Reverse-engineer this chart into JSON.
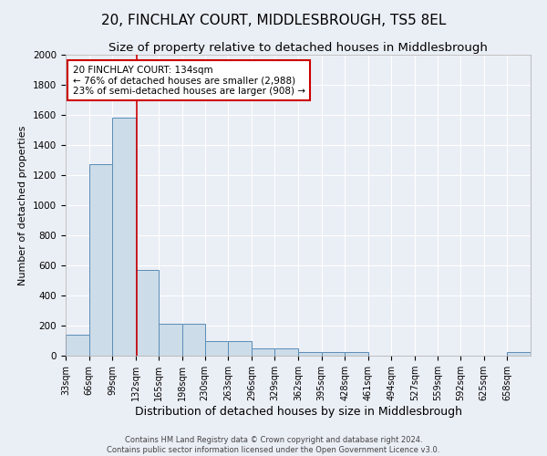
{
  "title1": "20, FINCHLAY COURT, MIDDLESBROUGH, TS5 8EL",
  "title2": "Size of property relative to detached houses in Middlesbrough",
  "xlabel": "Distribution of detached houses by size in Middlesbrough",
  "ylabel": "Number of detached properties",
  "footnote1": "Contains HM Land Registry data © Crown copyright and database right 2024.",
  "footnote2": "Contains public sector information licensed under the Open Government Licence v3.0.",
  "annotation_line1": "20 FINCHLAY COURT: 134sqm",
  "annotation_line2": "← 76% of detached houses are smaller (2,988)",
  "annotation_line3": "23% of semi-detached houses are larger (908) →",
  "bar_edges": [
    33,
    66,
    99,
    132,
    165,
    198,
    230,
    263,
    296,
    329,
    362,
    395,
    428,
    461,
    494,
    527,
    559,
    592,
    625,
    658,
    691
  ],
  "bar_heights": [
    140,
    1270,
    1580,
    570,
    215,
    215,
    100,
    100,
    50,
    50,
    25,
    25,
    25,
    0,
    0,
    0,
    0,
    0,
    0,
    25
  ],
  "bar_color": "#ccdce8",
  "bar_edge_color": "#5b8db8",
  "vline_x": 134,
  "vline_color": "#cc0000",
  "annotation_box_color": "#cc0000",
  "ylim": [
    0,
    2000
  ],
  "yticks": [
    0,
    200,
    400,
    600,
    800,
    1000,
    1200,
    1400,
    1600,
    1800,
    2000
  ],
  "bg_color": "#eaeef5",
  "plot_bg_color": "#eaeef5",
  "grid_color": "#ffffff",
  "title_fontsize": 11,
  "subtitle_fontsize": 9.5,
  "tick_label_fontsize": 7,
  "xlabel_fontsize": 9,
  "ylabel_fontsize": 8,
  "annotation_fontsize": 7.5,
  "footnote_fontsize": 6
}
